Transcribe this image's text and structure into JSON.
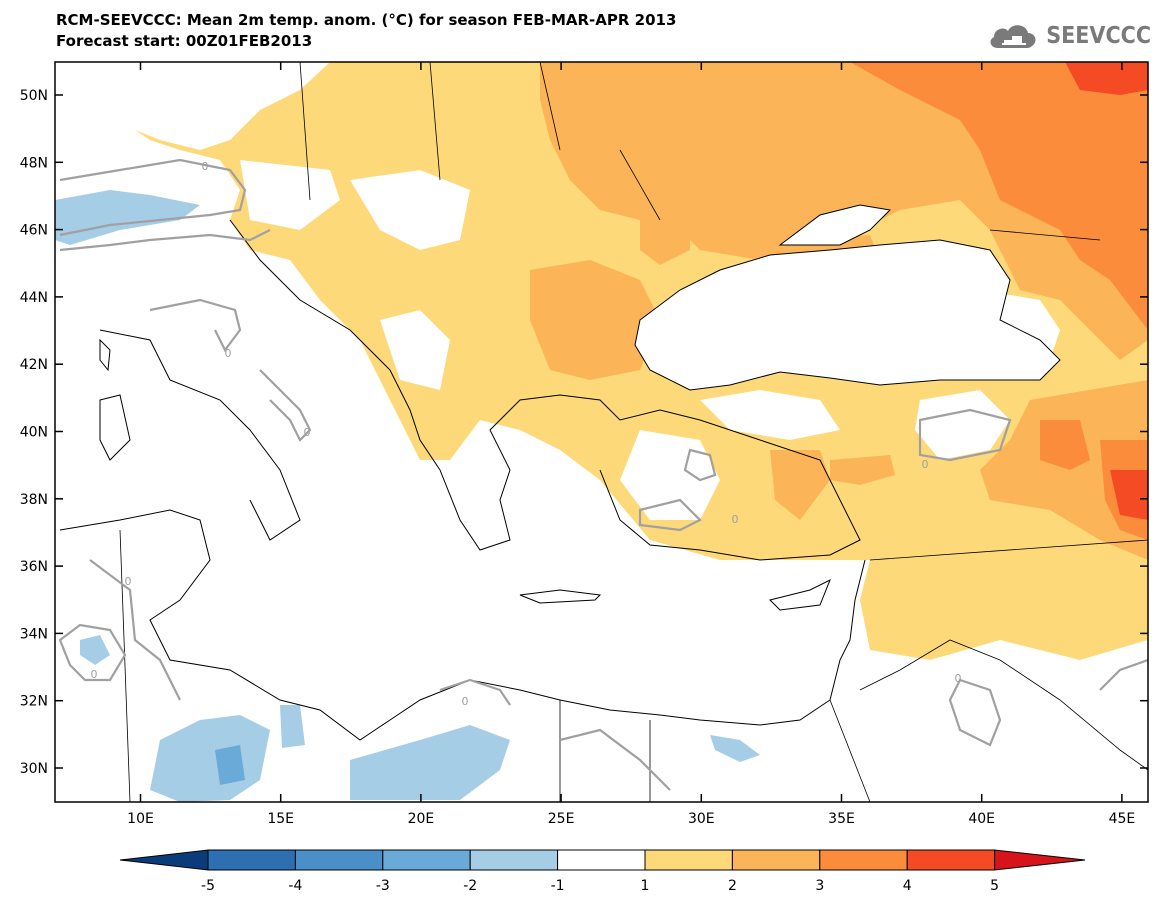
{
  "title": {
    "line1": "RCM-SEEVCCC: Mean 2m temp. anom. (°C) for season FEB-MAR-APR 2013",
    "line2": "Forecast start: 00Z01FEB2013"
  },
  "logo": {
    "text": "SEEVCCC",
    "icon": "cloud-icon"
  },
  "map": {
    "lat_ticks": [
      "50N",
      "48N",
      "46N",
      "44N",
      "42N",
      "40N",
      "38N",
      "36N",
      "34N",
      "32N",
      "30N"
    ],
    "lon_ticks": [
      "10E",
      "15E",
      "20E",
      "25E",
      "30E",
      "35E",
      "40E",
      "45E"
    ],
    "contour_label": "0",
    "lat_range": [
      29,
      51
    ],
    "lon_range": [
      7,
      46
    ]
  },
  "colorbar": {
    "labels": [
      "-5",
      "-4",
      "-3",
      "-2",
      "-1",
      "1",
      "2",
      "3",
      "4",
      "5"
    ],
    "colors": [
      "#0a3c7a",
      "#2d6fb0",
      "#4a8fc8",
      "#6aaad8",
      "#a6cde6",
      "#ffffff",
      "#fdd97a",
      "#fbb457",
      "#fa8c3c",
      "#f44b25",
      "#d6141a"
    ]
  }
}
